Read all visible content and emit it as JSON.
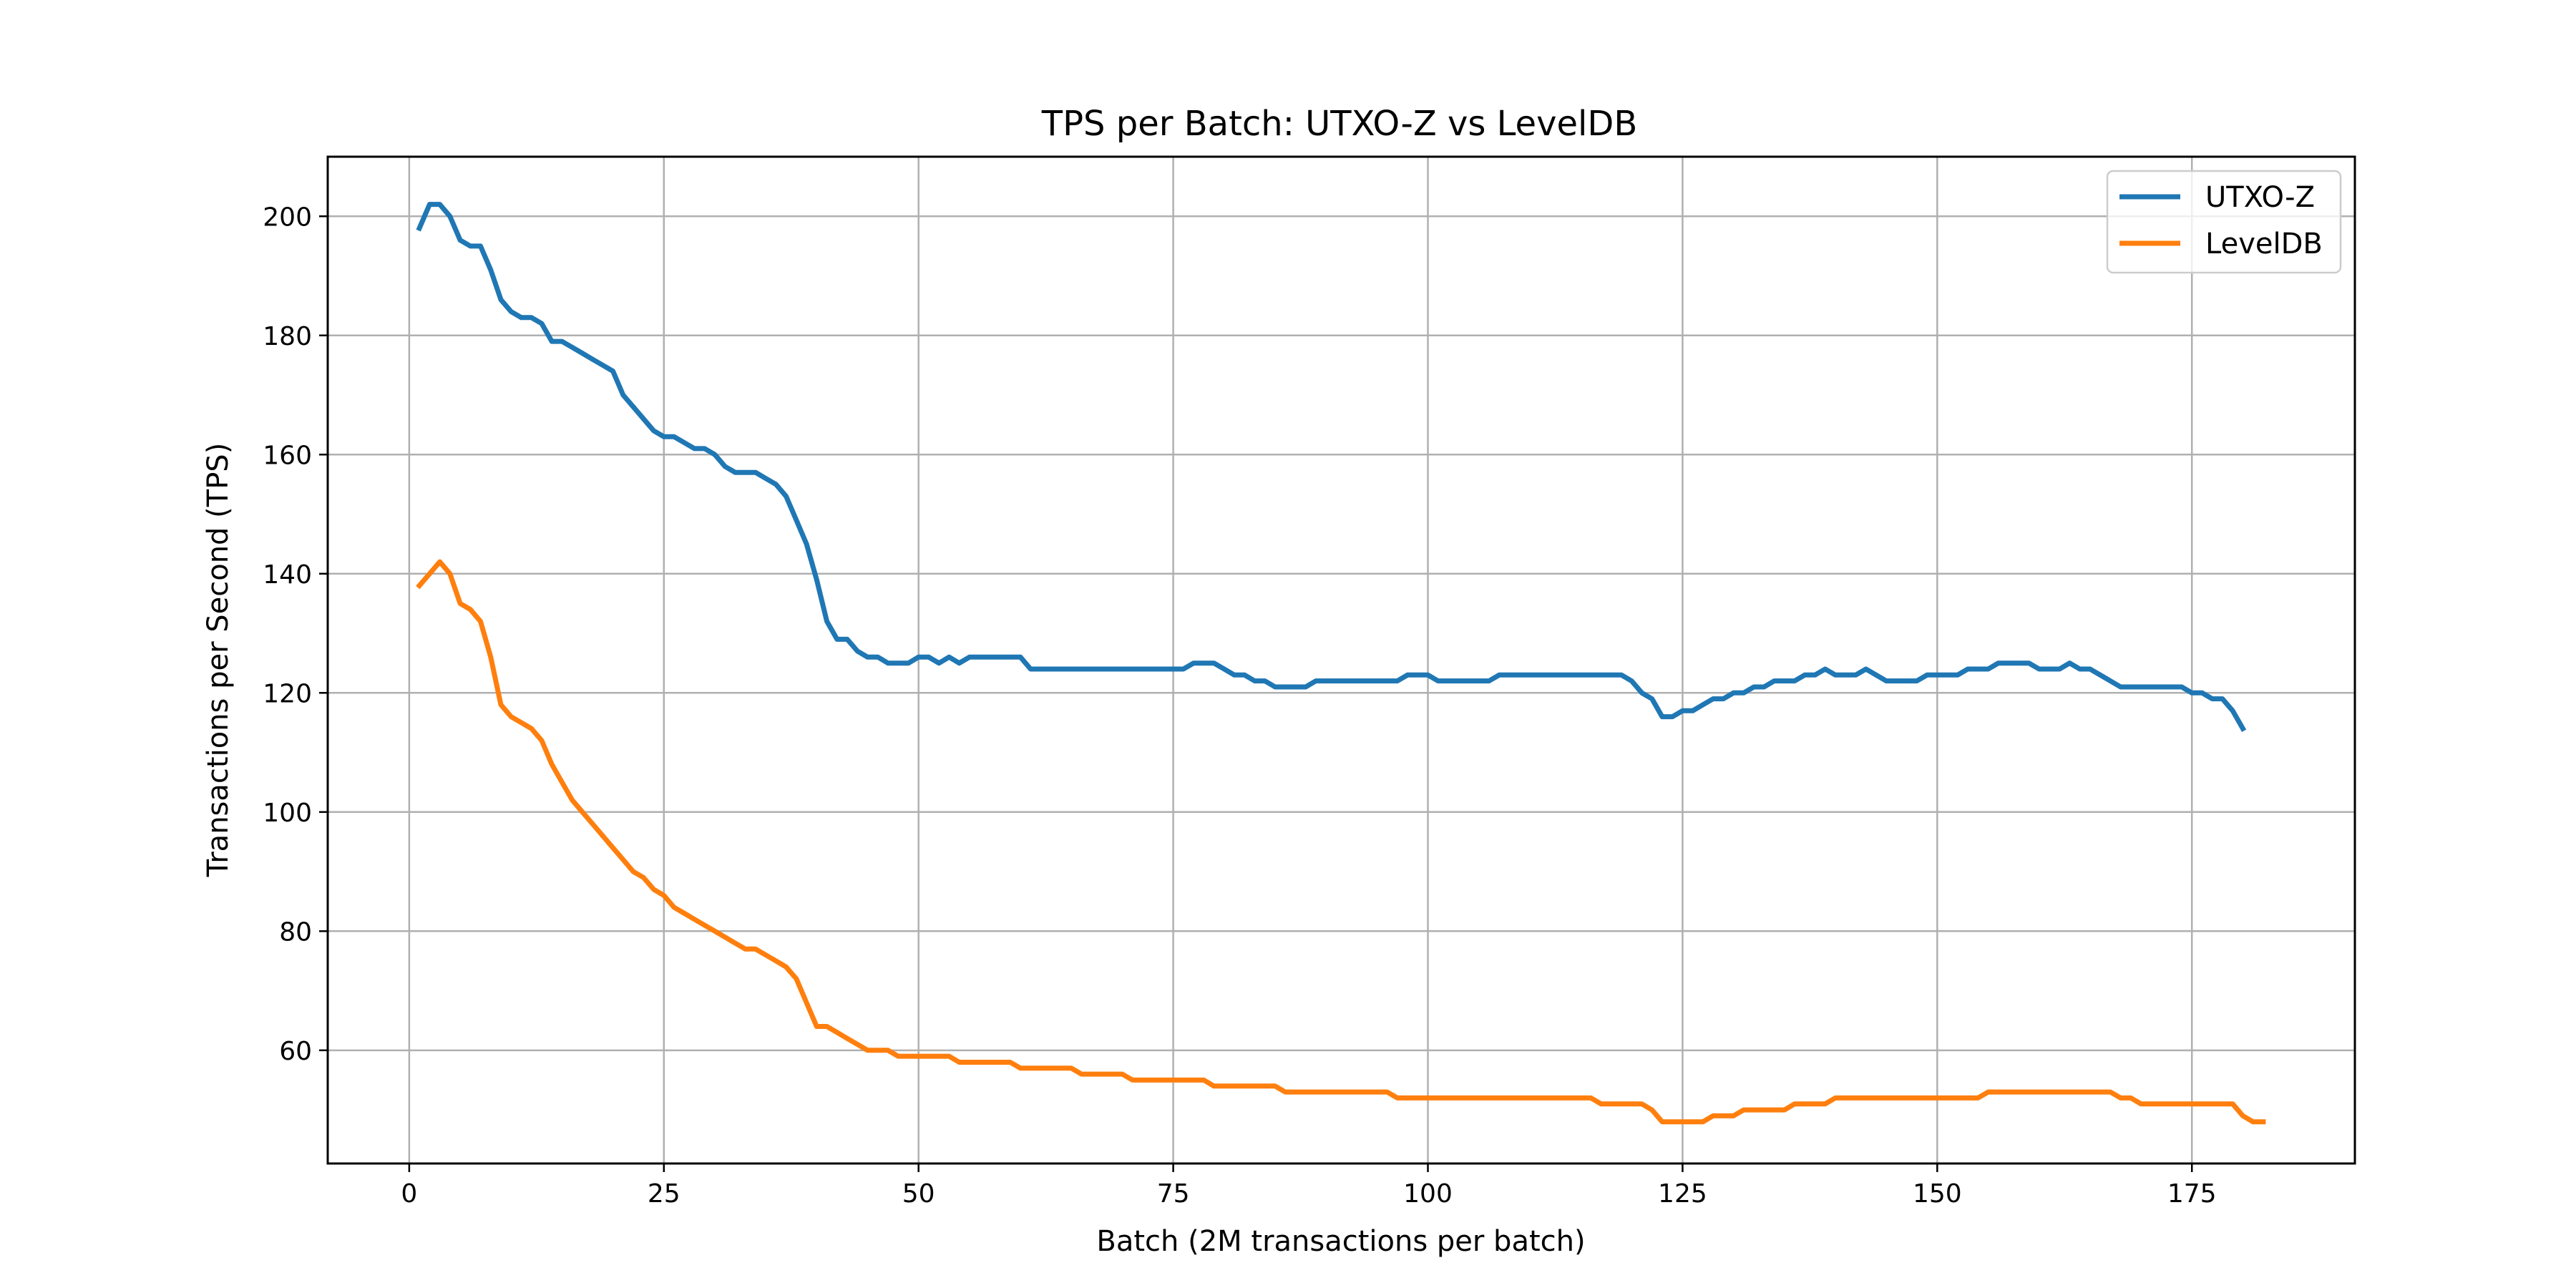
{
  "chart_data": {
    "type": "line",
    "title": "TPS per Batch: UTXO-Z vs LevelDB",
    "xlabel": "Batch (2M transactions per batch)",
    "ylabel": "Transactions per Second (TPS)",
    "xlim": [
      -8,
      191
    ],
    "ylim": [
      41,
      210
    ],
    "xticks": [
      0,
      25,
      50,
      75,
      100,
      125,
      150,
      175
    ],
    "yticks": [
      60,
      80,
      100,
      120,
      140,
      160,
      180,
      200
    ],
    "grid": true,
    "legend_position": "top-right",
    "series": [
      {
        "name": "UTXO-Z",
        "color": "#1f77b4",
        "points": [
          [
            1,
            198
          ],
          [
            2,
            202
          ],
          [
            3,
            202
          ],
          [
            4,
            200
          ],
          [
            5,
            196
          ],
          [
            6,
            195
          ],
          [
            7,
            195
          ],
          [
            8,
            191
          ],
          [
            9,
            186
          ],
          [
            10,
            184
          ],
          [
            11,
            183
          ],
          [
            12,
            183
          ],
          [
            13,
            182
          ],
          [
            14,
            179
          ],
          [
            15,
            179
          ],
          [
            16,
            178
          ],
          [
            17,
            177
          ],
          [
            18,
            176
          ],
          [
            19,
            175
          ],
          [
            20,
            174
          ],
          [
            21,
            170
          ],
          [
            22,
            168
          ],
          [
            23,
            166
          ],
          [
            24,
            164
          ],
          [
            25,
            163
          ],
          [
            26,
            163
          ],
          [
            27,
            162
          ],
          [
            28,
            161
          ],
          [
            29,
            161
          ],
          [
            30,
            160
          ],
          [
            31,
            158
          ],
          [
            32,
            157
          ],
          [
            33,
            157
          ],
          [
            34,
            157
          ],
          [
            35,
            156
          ],
          [
            36,
            155
          ],
          [
            37,
            153
          ],
          [
            38,
            149
          ],
          [
            39,
            145
          ],
          [
            40,
            139
          ],
          [
            41,
            132
          ],
          [
            42,
            129
          ],
          [
            43,
            129
          ],
          [
            44,
            127
          ],
          [
            45,
            126
          ],
          [
            46,
            126
          ],
          [
            47,
            125
          ],
          [
            48,
            125
          ],
          [
            49,
            125
          ],
          [
            50,
            126
          ],
          [
            51,
            126
          ],
          [
            52,
            125
          ],
          [
            53,
            126
          ],
          [
            54,
            125
          ],
          [
            55,
            126
          ],
          [
            56,
            126
          ],
          [
            57,
            126
          ],
          [
            58,
            126
          ],
          [
            59,
            126
          ],
          [
            60,
            126
          ],
          [
            61,
            124
          ],
          [
            62,
            124
          ],
          [
            65,
            124
          ],
          [
            70,
            124
          ],
          [
            76,
            124
          ],
          [
            77,
            125
          ],
          [
            78,
            125
          ],
          [
            79,
            125
          ],
          [
            80,
            124
          ],
          [
            81,
            123
          ],
          [
            82,
            123
          ],
          [
            83,
            122
          ],
          [
            84,
            122
          ],
          [
            85,
            121
          ],
          [
            86,
            121
          ],
          [
            87,
            121
          ],
          [
            88,
            121
          ],
          [
            89,
            122
          ],
          [
            90,
            122
          ],
          [
            92,
            122
          ],
          [
            95,
            122
          ],
          [
            96,
            122
          ],
          [
            97,
            122
          ],
          [
            98,
            123
          ],
          [
            99,
            123
          ],
          [
            100,
            123
          ],
          [
            101,
            122
          ],
          [
            102,
            122
          ],
          [
            105,
            122
          ],
          [
            106,
            122
          ],
          [
            107,
            123
          ],
          [
            108,
            123
          ],
          [
            110,
            123
          ],
          [
            115,
            123
          ],
          [
            118,
            123
          ],
          [
            119,
            123
          ],
          [
            120,
            122
          ],
          [
            121,
            120
          ],
          [
            122,
            119
          ],
          [
            123,
            116
          ],
          [
            124,
            116
          ],
          [
            125,
            117
          ],
          [
            126,
            117
          ],
          [
            127,
            118
          ],
          [
            128,
            119
          ],
          [
            129,
            119
          ],
          [
            130,
            120
          ],
          [
            131,
            120
          ],
          [
            132,
            121
          ],
          [
            133,
            121
          ],
          [
            134,
            122
          ],
          [
            135,
            122
          ],
          [
            136,
            122
          ],
          [
            137,
            123
          ],
          [
            138,
            123
          ],
          [
            139,
            124
          ],
          [
            140,
            123
          ],
          [
            141,
            123
          ],
          [
            142,
            123
          ],
          [
            143,
            124
          ],
          [
            144,
            123
          ],
          [
            145,
            122
          ],
          [
            146,
            122
          ],
          [
            147,
            122
          ],
          [
            148,
            122
          ],
          [
            149,
            123
          ],
          [
            150,
            123
          ],
          [
            151,
            123
          ],
          [
            152,
            123
          ],
          [
            153,
            124
          ],
          [
            154,
            124
          ],
          [
            155,
            124
          ],
          [
            156,
            125
          ],
          [
            157,
            125
          ],
          [
            158,
            125
          ],
          [
            159,
            125
          ],
          [
            160,
            124
          ],
          [
            161,
            124
          ],
          [
            162,
            124
          ],
          [
            163,
            125
          ],
          [
            164,
            124
          ],
          [
            165,
            124
          ],
          [
            166,
            123
          ],
          [
            167,
            122
          ],
          [
            168,
            121
          ],
          [
            169,
            121
          ],
          [
            170,
            121
          ],
          [
            171,
            121
          ],
          [
            172,
            121
          ],
          [
            173,
            121
          ],
          [
            174,
            121
          ],
          [
            175,
            120
          ],
          [
            176,
            120
          ],
          [
            177,
            119
          ],
          [
            178,
            119
          ],
          [
            179,
            117
          ],
          [
            180,
            114
          ]
        ]
      },
      {
        "name": "LevelDB",
        "color": "#ff7f0e",
        "points": [
          [
            1,
            138
          ],
          [
            2,
            140
          ],
          [
            3,
            142
          ],
          [
            4,
            140
          ],
          [
            5,
            135
          ],
          [
            6,
            134
          ],
          [
            7,
            132
          ],
          [
            8,
            126
          ],
          [
            9,
            118
          ],
          [
            10,
            116
          ],
          [
            11,
            115
          ],
          [
            12,
            114
          ],
          [
            13,
            112
          ],
          [
            14,
            108
          ],
          [
            15,
            105
          ],
          [
            16,
            102
          ],
          [
            17,
            100
          ],
          [
            18,
            98
          ],
          [
            19,
            96
          ],
          [
            20,
            94
          ],
          [
            21,
            92
          ],
          [
            22,
            90
          ],
          [
            23,
            89
          ],
          [
            24,
            87
          ],
          [
            25,
            86
          ],
          [
            26,
            84
          ],
          [
            27,
            83
          ],
          [
            28,
            82
          ],
          [
            29,
            81
          ],
          [
            30,
            80
          ],
          [
            31,
            79
          ],
          [
            32,
            78
          ],
          [
            33,
            77
          ],
          [
            34,
            77
          ],
          [
            35,
            76
          ],
          [
            36,
            75
          ],
          [
            37,
            74
          ],
          [
            38,
            72
          ],
          [
            39,
            68
          ],
          [
            40,
            64
          ],
          [
            41,
            64
          ],
          [
            42,
            63
          ],
          [
            43,
            62
          ],
          [
            44,
            61
          ],
          [
            45,
            60
          ],
          [
            46,
            60
          ],
          [
            47,
            60
          ],
          [
            48,
            59
          ],
          [
            49,
            59
          ],
          [
            50,
            59
          ],
          [
            51,
            59
          ],
          [
            52,
            59
          ],
          [
            53,
            59
          ],
          [
            54,
            58
          ],
          [
            55,
            58
          ],
          [
            56,
            58
          ],
          [
            57,
            58
          ],
          [
            58,
            58
          ],
          [
            59,
            58
          ],
          [
            60,
            57
          ],
          [
            61,
            57
          ],
          [
            62,
            57
          ],
          [
            63,
            57
          ],
          [
            64,
            57
          ],
          [
            65,
            57
          ],
          [
            66,
            56
          ],
          [
            67,
            56
          ],
          [
            68,
            56
          ],
          [
            69,
            56
          ],
          [
            70,
            56
          ],
          [
            71,
            55
          ],
          [
            72,
            55
          ],
          [
            73,
            55
          ],
          [
            74,
            55
          ],
          [
            75,
            55
          ],
          [
            76,
            55
          ],
          [
            77,
            55
          ],
          [
            78,
            55
          ],
          [
            79,
            54
          ],
          [
            80,
            54
          ],
          [
            81,
            54
          ],
          [
            82,
            54
          ],
          [
            83,
            54
          ],
          [
            84,
            54
          ],
          [
            85,
            54
          ],
          [
            86,
            53
          ],
          [
            87,
            53
          ],
          [
            88,
            53
          ],
          [
            90,
            53
          ],
          [
            95,
            53
          ],
          [
            96,
            53
          ],
          [
            97,
            52
          ],
          [
            98,
            52
          ],
          [
            100,
            52
          ],
          [
            105,
            52
          ],
          [
            110,
            52
          ],
          [
            115,
            52
          ],
          [
            116,
            52
          ],
          [
            117,
            51
          ],
          [
            118,
            51
          ],
          [
            119,
            51
          ],
          [
            120,
            51
          ],
          [
            121,
            51
          ],
          [
            122,
            50
          ],
          [
            123,
            48
          ],
          [
            124,
            48
          ],
          [
            125,
            48
          ],
          [
            126,
            48
          ],
          [
            127,
            48
          ],
          [
            128,
            49
          ],
          [
            129,
            49
          ],
          [
            130,
            49
          ],
          [
            131,
            50
          ],
          [
            132,
            50
          ],
          [
            133,
            50
          ],
          [
            134,
            50
          ],
          [
            135,
            50
          ],
          [
            136,
            51
          ],
          [
            137,
            51
          ],
          [
            138,
            51
          ],
          [
            139,
            51
          ],
          [
            140,
            52
          ],
          [
            141,
            52
          ],
          [
            145,
            52
          ],
          [
            150,
            52
          ],
          [
            153,
            52
          ],
          [
            154,
            52
          ],
          [
            155,
            53
          ],
          [
            156,
            53
          ],
          [
            160,
            53
          ],
          [
            165,
            53
          ],
          [
            166,
            53
          ],
          [
            167,
            53
          ],
          [
            168,
            52
          ],
          [
            169,
            52
          ],
          [
            170,
            51
          ],
          [
            171,
            51
          ],
          [
            172,
            51
          ],
          [
            175,
            51
          ],
          [
            178,
            51
          ],
          [
            179,
            51
          ],
          [
            180,
            49
          ],
          [
            181,
            48
          ],
          [
            182,
            48
          ]
        ]
      }
    ]
  }
}
